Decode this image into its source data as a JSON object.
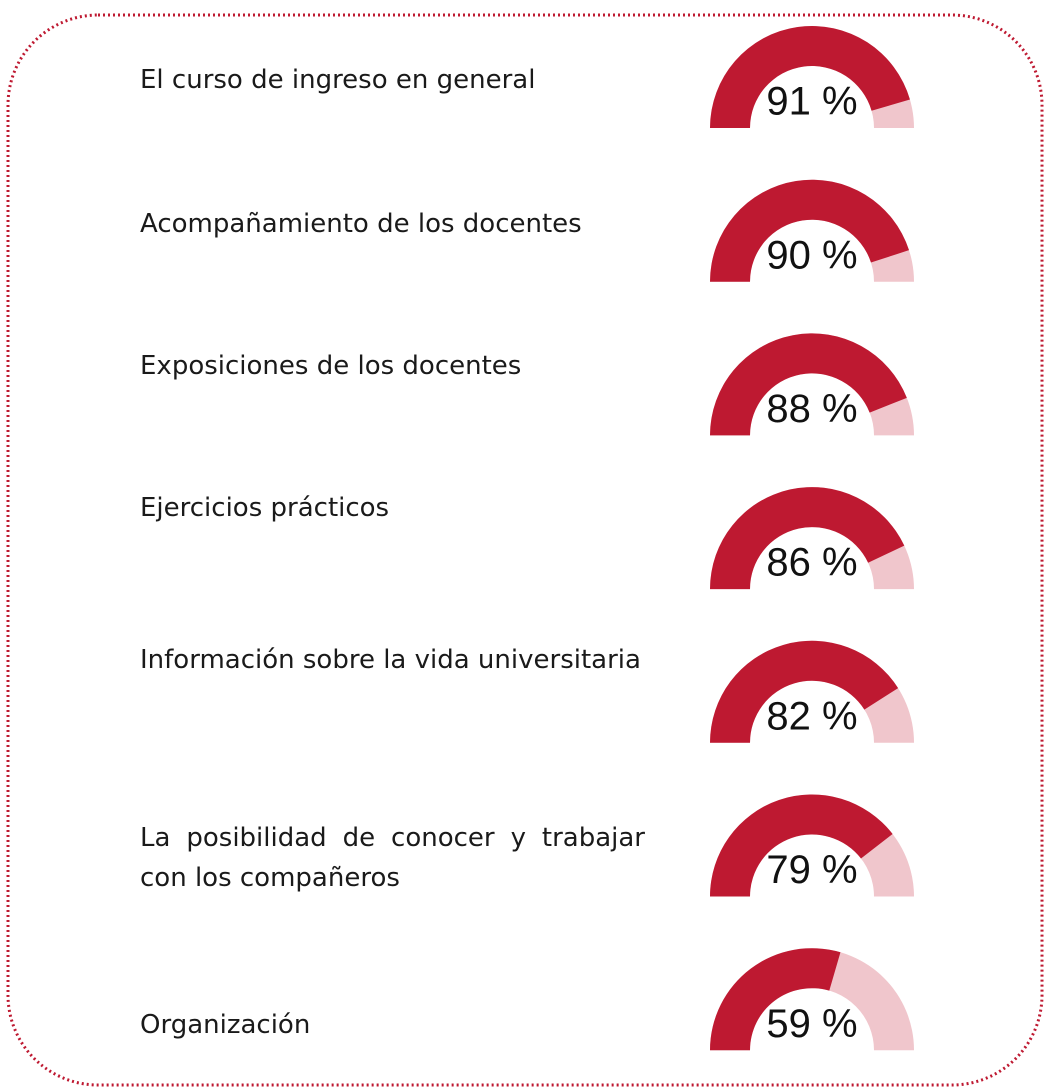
{
  "chart_data": {
    "type": "gauge",
    "categories": [
      "El curso de ingreso en general",
      "Acompañamiento de los docentes",
      "Exposiciones de los docentes",
      "Ejercicios prácticos",
      "Información sobre la vida universitaria",
      "La posibilidad de conocer y trabajar con los compañeros",
      "Organización"
    ],
    "values": [
      91,
      90,
      88,
      86,
      82,
      79,
      59
    ],
    "value_labels": [
      "91 %",
      "90 %",
      "88 %",
      "86 %",
      "82 %",
      "79 %",
      "59 %"
    ],
    "color": "#be1931",
    "track_color": "#f0c6cc"
  }
}
